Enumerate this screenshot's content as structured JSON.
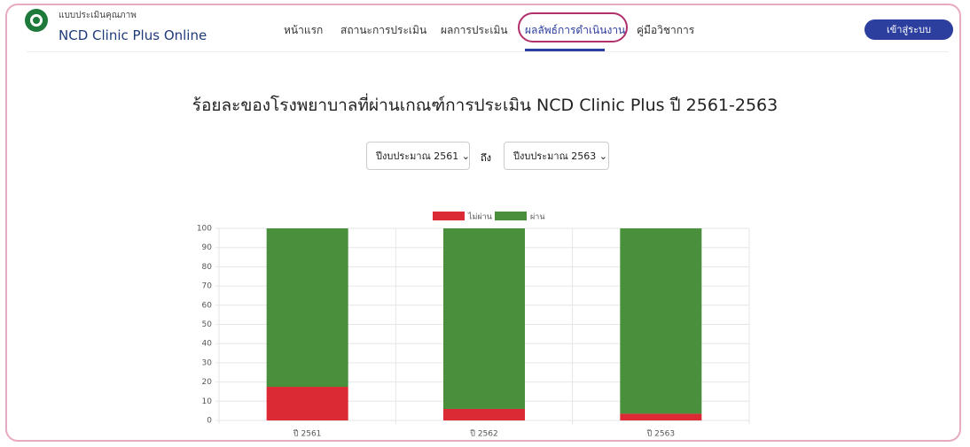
{
  "header": {
    "logo_text": "แบบประเมินคุณภาพ",
    "brand": "NCD Clinic Plus Online",
    "nav": [
      "หน้าแรก",
      "สถานะการประเมิน",
      "ผลการประเมิน",
      "ผลลัพธ์การดำเนินงาน",
      "คู่มือวิชาการ"
    ],
    "active": 3,
    "login": "เข้าสู่ระบบ"
  },
  "page_title": "ร้อยละของโรงพยาบาลที่ผ่านเกณฑ์การประเมิน NCD Clinic Plus ปี 2561-2563",
  "filter": {
    "from": "ปีงบประมาณ 2561",
    "separator": "ถึง",
    "to": "ปีงบประมาณ 2563"
  },
  "chart_data": {
    "type": "stacked_bar",
    "categories": [
      "ปี 2561",
      "ปี 2562",
      "ปี 2563"
    ],
    "series": [
      {
        "name": "ไม่ผ่าน",
        "color": "#dc2a35",
        "values": [
          17.5,
          6,
          3.5
        ]
      },
      {
        "name": "ผ่าน",
        "color": "#4a8f3c",
        "values": [
          82.5,
          94,
          96.5
        ]
      }
    ],
    "ylim": [
      0,
      100
    ],
    "yticks": [
      0,
      10,
      20,
      30,
      40,
      50,
      60,
      70,
      80,
      90,
      100
    ],
    "grid": true
  }
}
